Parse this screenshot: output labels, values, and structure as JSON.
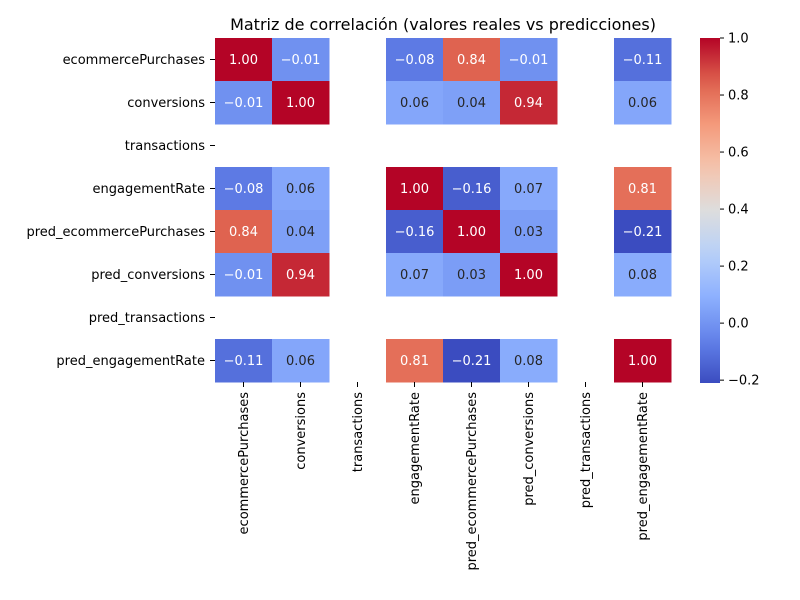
{
  "chart_data": {
    "type": "heatmap",
    "title": "Matriz de correlación (valores reales vs predicciones)",
    "row_labels": [
      "ecommercePurchases",
      "conversions",
      "transactions",
      "engagementRate",
      "pred_ecommercePurchases",
      "pred_conversions",
      "pred_transactions",
      "pred_engagementRate"
    ],
    "col_labels": [
      "ecommercePurchases",
      "conversions",
      "transactions",
      "engagementRate",
      "pred_ecommercePurchases",
      "pred_conversions",
      "pred_transactions",
      "pred_engagementRate"
    ],
    "values": [
      [
        1.0,
        -0.01,
        null,
        -0.08,
        0.84,
        -0.01,
        null,
        -0.11
      ],
      [
        -0.01,
        1.0,
        null,
        0.06,
        0.04,
        0.94,
        null,
        0.06
      ],
      [
        null,
        null,
        null,
        null,
        null,
        null,
        null,
        null
      ],
      [
        -0.08,
        0.06,
        null,
        1.0,
        -0.16,
        0.07,
        null,
        0.81
      ],
      [
        0.84,
        0.04,
        null,
        -0.16,
        1.0,
        0.03,
        null,
        -0.21
      ],
      [
        -0.01,
        0.94,
        null,
        0.07,
        0.03,
        1.0,
        null,
        0.08
      ],
      [
        null,
        null,
        null,
        null,
        null,
        null,
        null,
        null
      ],
      [
        -0.11,
        0.06,
        null,
        0.81,
        -0.21,
        0.08,
        null,
        1.0
      ]
    ],
    "value_format": "0.00",
    "colormap": "coolwarm",
    "colorbar": {
      "min": -0.21,
      "max": 1.0,
      "ticks": [
        -0.2,
        0.0,
        0.2,
        0.4,
        0.6,
        0.8,
        1.0
      ],
      "tick_labels": [
        "−0.2",
        "0.0",
        "0.2",
        "0.4",
        "0.6",
        "0.8",
        "1.0"
      ]
    },
    "grid": false,
    "legend": "colorbar-right"
  }
}
